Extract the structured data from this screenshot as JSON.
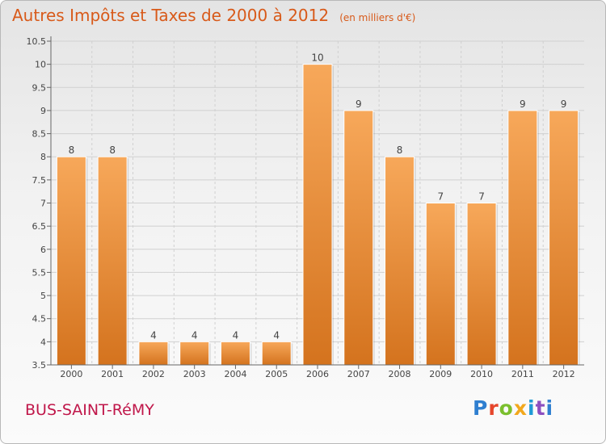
{
  "header": {
    "title": "Autres Impôts et Taxes de 2000 à 2012",
    "unit": "(en milliers d'€)"
  },
  "footer": {
    "commune": "BUS-SAINT-RéMY",
    "logo_letters": [
      "P",
      "r",
      "o",
      "x",
      "i",
      "t",
      "i"
    ]
  },
  "colors": {
    "bar_top": "#f7a85a",
    "bar_bottom": "#d4731e",
    "title": "#d85a1a",
    "commune": "#c0174a",
    "grid": "#d0d0d0"
  },
  "chart_data": {
    "type": "bar",
    "title": "Autres Impôts et Taxes de 2000 à 2012",
    "xlabel": "",
    "ylabel": "",
    "categories": [
      "2000",
      "2001",
      "2002",
      "2003",
      "2004",
      "2005",
      "2006",
      "2007",
      "2008",
      "2009",
      "2010",
      "2011",
      "2012"
    ],
    "values": [
      8,
      8,
      4,
      4,
      4,
      4,
      10,
      9,
      8,
      7,
      7,
      9,
      9
    ],
    "data_labels": [
      "8",
      "8",
      "4",
      "4",
      "4",
      "4",
      "10",
      "9",
      "8",
      "7",
      "7",
      "9",
      "9"
    ],
    "ylim": [
      3.5,
      10.5
    ],
    "yticks": [
      3.5,
      4,
      4.5,
      5,
      5.5,
      6,
      6.5,
      7,
      7.5,
      8,
      8.5,
      9,
      9.5,
      10,
      10.5
    ],
    "grid": true,
    "legend": "none"
  }
}
